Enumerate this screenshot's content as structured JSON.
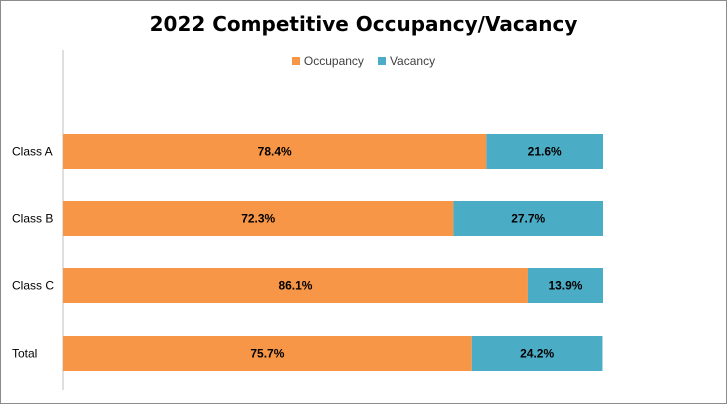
{
  "chart_data": {
    "type": "bar",
    "orientation": "horizontal",
    "stacked": true,
    "title": "2022 Competitive Occupancy/Vacancy",
    "categories": [
      "Class A",
      "Class B",
      "Class C",
      "Total"
    ],
    "series": [
      {
        "name": "Occupancy",
        "color": "#f79646",
        "values": [
          78.4,
          72.3,
          86.1,
          75.7
        ],
        "labels": [
          "78.4%",
          "72.3%",
          "86.1%",
          "75.7%"
        ]
      },
      {
        "name": "Vacancy",
        "color": "#4bacc6",
        "values": [
          21.6,
          27.7,
          13.9,
          24.2
        ],
        "labels": [
          "21.6%",
          "27.7%",
          "13.9%",
          "24.2%"
        ]
      }
    ],
    "xlim": [
      0,
      100
    ],
    "grid": false,
    "legend_position": "top"
  }
}
